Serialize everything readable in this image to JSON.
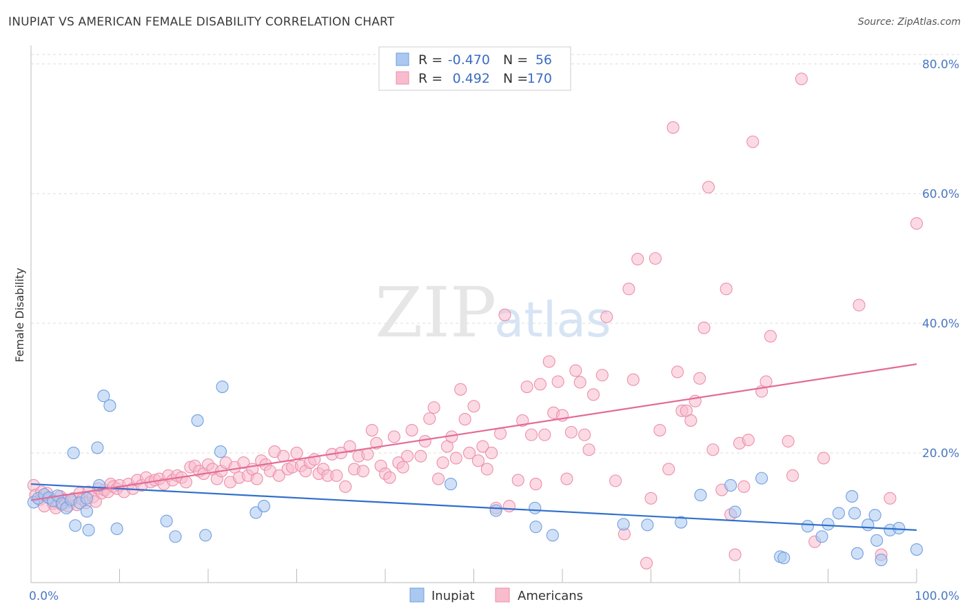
{
  "title": "INUPIAT VS AMERICAN FEMALE DISABILITY CORRELATION CHART",
  "source": "Source: ZipAtlas.com",
  "watermark": {
    "zip": "ZIP",
    "atlas": "atlas"
  },
  "colors": {
    "inupiat_fill": "#aac8f0",
    "inupiat_stroke": "#6f9ee0",
    "inupiat_line": "#2f6fcc",
    "americans_fill": "#f8bccd",
    "americans_stroke": "#ec8eaa",
    "americans_line": "#e36a96",
    "tick_text": "#4a78c4",
    "grid": "#dddddd"
  },
  "legend": {
    "r_label": "R =",
    "n_label": "N =",
    "rows": [
      {
        "series": "Inupiat",
        "r": "-0.470",
        "n": "56"
      },
      {
        "series": "Americans",
        "r": "0.492",
        "n": "170"
      }
    ]
  },
  "chart_data": {
    "type": "scatter",
    "title": "INUPIAT VS AMERICAN FEMALE DISABILITY CORRELATION CHART",
    "xlabel": "",
    "ylabel": "Female Disability",
    "xlim": [
      0,
      100
    ],
    "ylim": [
      0,
      82
    ],
    "x_tick_labels": [
      "0.0%",
      "100.0%"
    ],
    "y_ticks": [
      20,
      40,
      60,
      80
    ],
    "y_tick_labels": [
      "20.0%",
      "40.0%",
      "60.0%",
      "80.0%"
    ],
    "grid": true,
    "legend_position": "top-center",
    "series": [
      {
        "name": "Inupiat",
        "trend": {
          "x": [
            0,
            100
          ],
          "y": [
            15.2,
            8.1
          ]
        },
        "points": [
          [
            0.3,
            12.4
          ],
          [
            0.8,
            13.0
          ],
          [
            1.5,
            13.6
          ],
          [
            2.0,
            13.1
          ],
          [
            2.5,
            12.6
          ],
          [
            3.0,
            13.4
          ],
          [
            3.5,
            12.2
          ],
          [
            4.0,
            11.5
          ],
          [
            4.5,
            12.8
          ],
          [
            5.0,
            8.8
          ],
          [
            4.8,
            20.0
          ],
          [
            5.5,
            12.3
          ],
          [
            6.3,
            13.0
          ],
          [
            6.3,
            11.0
          ],
          [
            6.5,
            8.1
          ],
          [
            7.5,
            20.8
          ],
          [
            7.7,
            15.0
          ],
          [
            8.2,
            28.8
          ],
          [
            8.9,
            27.3
          ],
          [
            9.7,
            8.3
          ],
          [
            15.3,
            9.5
          ],
          [
            16.3,
            7.1
          ],
          [
            18.8,
            25.0
          ],
          [
            19.7,
            7.3
          ],
          [
            21.4,
            20.2
          ],
          [
            21.6,
            30.2
          ],
          [
            25.4,
            10.8
          ],
          [
            26.3,
            11.8
          ],
          [
            47.4,
            15.2
          ],
          [
            52.5,
            11.1
          ],
          [
            56.9,
            11.5
          ],
          [
            57.0,
            8.6
          ],
          [
            58.9,
            7.3
          ],
          [
            66.9,
            9.0
          ],
          [
            69.6,
            8.9
          ],
          [
            73.4,
            9.3
          ],
          [
            75.6,
            13.5
          ],
          [
            79.0,
            15.0
          ],
          [
            79.5,
            10.9
          ],
          [
            82.5,
            16.1
          ],
          [
            84.6,
            4.0
          ],
          [
            85.0,
            3.8
          ],
          [
            87.7,
            8.7
          ],
          [
            89.3,
            7.1
          ],
          [
            90.0,
            9.0
          ],
          [
            91.2,
            10.7
          ],
          [
            92.7,
            13.3
          ],
          [
            93.0,
            10.7
          ],
          [
            93.3,
            4.5
          ],
          [
            94.5,
            8.9
          ],
          [
            95.3,
            10.4
          ],
          [
            95.5,
            6.5
          ],
          [
            96.0,
            3.5
          ],
          [
            97.0,
            8.1
          ],
          [
            98.0,
            8.4
          ],
          [
            100.0,
            5.1
          ]
        ]
      },
      {
        "name": "Americans",
        "trend": {
          "x": [
            0,
            100
          ],
          "y": [
            12.7,
            33.7
          ]
        },
        "points": [
          [
            0.3,
            15.0
          ],
          [
            0.5,
            13.5
          ],
          [
            1.0,
            12.8
          ],
          [
            1.2,
            14.0
          ],
          [
            1.5,
            11.8
          ],
          [
            1.8,
            13.8
          ],
          [
            2.2,
            13.0
          ],
          [
            2.5,
            12.2
          ],
          [
            2.8,
            11.5
          ],
          [
            3.0,
            12.5
          ],
          [
            3.3,
            13.3
          ],
          [
            3.5,
            12.0
          ],
          [
            3.8,
            12.8
          ],
          [
            4.2,
            11.8
          ],
          [
            4.5,
            12.5
          ],
          [
            4.8,
            13.0
          ],
          [
            5.2,
            12.0
          ],
          [
            5.5,
            13.8
          ],
          [
            5.8,
            12.8
          ],
          [
            6.2,
            12.3
          ],
          [
            6.5,
            14.0
          ],
          [
            7.0,
            13.2
          ],
          [
            7.3,
            12.5
          ],
          [
            7.6,
            14.5
          ],
          [
            8.0,
            13.8
          ],
          [
            8.3,
            14.3
          ],
          [
            8.7,
            14.0
          ],
          [
            9.0,
            15.2
          ],
          [
            9.3,
            14.8
          ],
          [
            9.7,
            14.5
          ],
          [
            10.0,
            15.0
          ],
          [
            10.5,
            14.0
          ],
          [
            11.0,
            15.2
          ],
          [
            11.5,
            14.5
          ],
          [
            12.0,
            15.8
          ],
          [
            12.5,
            15.0
          ],
          [
            13.0,
            16.2
          ],
          [
            13.5,
            15.5
          ],
          [
            14.0,
            15.8
          ],
          [
            14.5,
            16.0
          ],
          [
            15.0,
            15.2
          ],
          [
            15.5,
            16.5
          ],
          [
            16.0,
            15.8
          ],
          [
            16.5,
            16.5
          ],
          [
            17.0,
            16.2
          ],
          [
            17.5,
            15.5
          ],
          [
            18.0,
            17.8
          ],
          [
            18.5,
            18.0
          ],
          [
            19.0,
            17.2
          ],
          [
            19.5,
            16.8
          ],
          [
            20.0,
            18.2
          ],
          [
            20.5,
            17.5
          ],
          [
            21.0,
            16.0
          ],
          [
            21.5,
            17.2
          ],
          [
            22.0,
            18.5
          ],
          [
            22.5,
            15.5
          ],
          [
            23.0,
            17.8
          ],
          [
            23.5,
            16.2
          ],
          [
            24.0,
            18.5
          ],
          [
            24.5,
            16.5
          ],
          [
            25.0,
            17.5
          ],
          [
            25.5,
            16.0
          ],
          [
            26.0,
            18.8
          ],
          [
            26.5,
            18.2
          ],
          [
            27.0,
            17.2
          ],
          [
            27.5,
            20.2
          ],
          [
            28.0,
            16.5
          ],
          [
            28.5,
            19.5
          ],
          [
            29.0,
            17.5
          ],
          [
            29.5,
            17.8
          ],
          [
            30.0,
            20.0
          ],
          [
            30.5,
            18.0
          ],
          [
            31.0,
            17.2
          ],
          [
            31.5,
            18.5
          ],
          [
            32.0,
            19.0
          ],
          [
            32.5,
            16.8
          ],
          [
            33.0,
            17.5
          ],
          [
            33.5,
            16.5
          ],
          [
            34.0,
            19.8
          ],
          [
            34.5,
            16.5
          ],
          [
            35.0,
            20.0
          ],
          [
            35.5,
            14.8
          ],
          [
            36.0,
            21.0
          ],
          [
            36.5,
            17.5
          ],
          [
            37.0,
            19.5
          ],
          [
            37.5,
            17.2
          ],
          [
            38.0,
            19.8
          ],
          [
            38.5,
            23.5
          ],
          [
            39.0,
            21.5
          ],
          [
            39.5,
            18.0
          ],
          [
            40.0,
            16.8
          ],
          [
            40.5,
            16.2
          ],
          [
            41.0,
            22.5
          ],
          [
            41.5,
            18.5
          ],
          [
            42.0,
            17.8
          ],
          [
            42.5,
            19.5
          ],
          [
            43.0,
            23.5
          ],
          [
            44.0,
            19.5
          ],
          [
            44.5,
            21.8
          ],
          [
            45.0,
            25.3
          ],
          [
            45.5,
            27.0
          ],
          [
            46.0,
            16.0
          ],
          [
            46.5,
            18.5
          ],
          [
            47.0,
            21.0
          ],
          [
            47.5,
            22.5
          ],
          [
            48.0,
            19.2
          ],
          [
            48.5,
            29.8
          ],
          [
            49.0,
            25.2
          ],
          [
            49.5,
            20.0
          ],
          [
            50.0,
            27.2
          ],
          [
            50.5,
            18.8
          ],
          [
            51.0,
            21.0
          ],
          [
            51.5,
            17.5
          ],
          [
            52.0,
            20.0
          ],
          [
            52.5,
            11.5
          ],
          [
            53.0,
            23.0
          ],
          [
            53.5,
            41.3
          ],
          [
            54.0,
            11.8
          ],
          [
            55.0,
            15.8
          ],
          [
            55.5,
            25.0
          ],
          [
            56.0,
            30.2
          ],
          [
            56.5,
            22.8
          ],
          [
            57.0,
            15.2
          ],
          [
            57.5,
            30.6
          ],
          [
            58.0,
            22.8
          ],
          [
            58.5,
            34.1
          ],
          [
            59.0,
            26.2
          ],
          [
            59.5,
            31.0
          ],
          [
            60.0,
            25.8
          ],
          [
            60.5,
            16.0
          ],
          [
            61.0,
            23.2
          ],
          [
            61.5,
            32.7
          ],
          [
            62.0,
            30.9
          ],
          [
            62.5,
            22.8
          ],
          [
            63.0,
            20.5
          ],
          [
            63.5,
            29.0
          ],
          [
            64.5,
            32.0
          ],
          [
            65.0,
            41.0
          ],
          [
            66.0,
            15.7
          ],
          [
            67.0,
            7.5
          ],
          [
            67.5,
            45.3
          ],
          [
            68.0,
            31.3
          ],
          [
            68.5,
            49.9
          ],
          [
            69.5,
            3.0
          ],
          [
            70.0,
            13.0
          ],
          [
            70.5,
            50.0
          ],
          [
            71.0,
            23.5
          ],
          [
            72.0,
            17.5
          ],
          [
            72.5,
            70.2
          ],
          [
            73.0,
            32.5
          ],
          [
            73.5,
            26.5
          ],
          [
            74.0,
            26.5
          ],
          [
            74.5,
            25.0
          ],
          [
            75.0,
            28.0
          ],
          [
            75.5,
            31.5
          ],
          [
            76.0,
            39.3
          ],
          [
            76.5,
            61.0
          ],
          [
            77.0,
            20.5
          ],
          [
            78.0,
            14.3
          ],
          [
            78.5,
            45.3
          ],
          [
            79.0,
            10.5
          ],
          [
            79.5,
            4.3
          ],
          [
            80.0,
            21.5
          ],
          [
            80.5,
            14.8
          ],
          [
            81.0,
            22.0
          ],
          [
            81.5,
            68.0
          ],
          [
            82.5,
            29.5
          ],
          [
            83.0,
            31.0
          ],
          [
            83.5,
            38.0
          ],
          [
            85.5,
            21.8
          ],
          [
            86.0,
            16.5
          ],
          [
            87.0,
            77.7
          ],
          [
            88.5,
            6.3
          ],
          [
            89.5,
            19.2
          ],
          [
            93.5,
            42.8
          ],
          [
            96.0,
            4.3
          ],
          [
            97.0,
            13.0
          ],
          [
            100.0,
            55.4
          ]
        ]
      }
    ]
  }
}
